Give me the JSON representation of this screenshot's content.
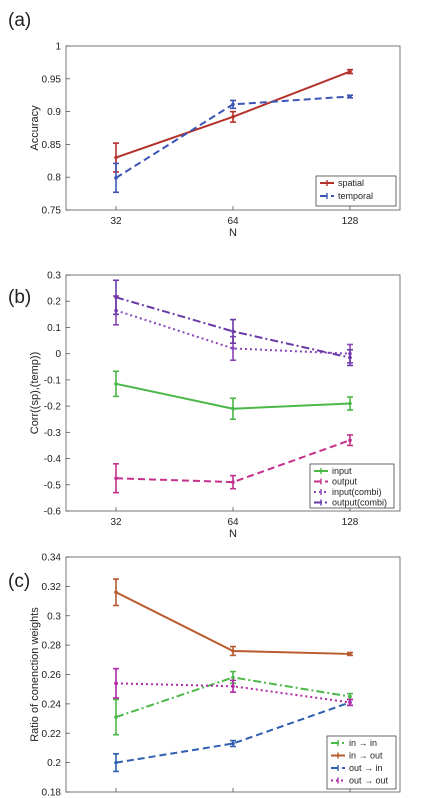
{
  "chart_data": [
    {
      "panel_label": "(a)",
      "type": "line",
      "xscale": "log2",
      "x": [
        32,
        64,
        128
      ],
      "xticklabels": [
        "32",
        "64",
        "128"
      ],
      "xlabel": "N",
      "ylabel": "Accuracy",
      "ylim": [
        0.75,
        1.0
      ],
      "yticks": [
        0.75,
        0.8,
        0.85,
        0.9,
        0.95,
        1.0
      ],
      "yticklabels": [
        "0.75",
        "0.8",
        "0.85",
        "0.9",
        "0.95",
        "1"
      ],
      "legend_position": "bottom-right",
      "series": [
        {
          "name": "spatial",
          "color": "#b5312b",
          "dash": "solid",
          "values": [
            0.83,
            0.892,
            0.961
          ],
          "errors": [
            0.022,
            0.008,
            0.003
          ]
        },
        {
          "name": "temporal",
          "color": "#3c55b5",
          "dash": "dashed",
          "values": [
            0.799,
            0.911,
            0.923
          ],
          "errors": [
            0.022,
            0.006,
            0.002
          ]
        }
      ]
    },
    {
      "panel_label": "(b)",
      "type": "line",
      "xscale": "log2",
      "x": [
        32,
        64,
        128
      ],
      "xticklabels": [
        "32",
        "64",
        "128"
      ],
      "xlabel": "N",
      "ylabel": "Corr((sp),(temp))",
      "ylim": [
        -0.6,
        0.3
      ],
      "yticks": [
        -0.6,
        -0.5,
        -0.4,
        -0.3,
        -0.2,
        -0.1,
        0,
        0.1,
        0.2,
        0.3
      ],
      "yticklabels": [
        "-0.6",
        "-0.5",
        "-0.4",
        "-0.3",
        "-0.2",
        "-0.1",
        "0",
        "0.1",
        "0.2",
        "0.3"
      ],
      "legend_position": "bottom-right",
      "series": [
        {
          "name": "input",
          "color": "#4cb848",
          "dash": "solid",
          "values": [
            -0.115,
            -0.21,
            -0.19
          ],
          "errors": [
            0.048,
            0.04,
            0.025
          ]
        },
        {
          "name": "output",
          "color": "#c4308c",
          "dash": "dashed",
          "values": [
            -0.475,
            -0.49,
            -0.33
          ],
          "errors": [
            0.055,
            0.025,
            0.02
          ]
        },
        {
          "name": "input(combi)",
          "color": "#8a45b8",
          "dash": "dotted",
          "values": [
            0.165,
            0.02,
            0.0
          ],
          "errors": [
            0.055,
            0.045,
            0.035
          ]
        },
        {
          "name": "output(combi)",
          "color": "#6a3aa8",
          "dash": "dashdot",
          "values": [
            0.215,
            0.085,
            -0.015
          ],
          "errors": [
            0.065,
            0.045,
            0.03
          ]
        }
      ]
    },
    {
      "panel_label": "(c)",
      "type": "line",
      "xscale": "log2",
      "x": [
        32,
        64,
        128
      ],
      "xticklabels": [
        "32",
        "64",
        "128"
      ],
      "xlabel": "N",
      "ylabel": "Ratio of conenction weights",
      "ylim": [
        0.18,
        0.34
      ],
      "yticks": [
        0.18,
        0.2,
        0.22,
        0.24,
        0.26,
        0.28,
        0.3,
        0.32,
        0.34
      ],
      "yticklabels": [
        "0.18",
        "0.2",
        "0.22",
        "0.24",
        "0.26",
        "0.28",
        "0.3",
        "0.32",
        "0.34"
      ],
      "legend_position": "bottom-right",
      "series": [
        {
          "name": "in → in",
          "color": "#4cb848",
          "dash": "dashdot",
          "values": [
            0.231,
            0.258,
            0.245
          ],
          "errors": [
            0.012,
            0.004,
            0.002
          ]
        },
        {
          "name": "in → out",
          "color": "#b85a2e",
          "dash": "solid",
          "values": [
            0.316,
            0.276,
            0.274
          ],
          "errors": [
            0.009,
            0.003,
            0.001
          ]
        },
        {
          "name": "out → in",
          "color": "#2f5fb0",
          "dash": "dashed",
          "values": [
            0.2,
            0.213,
            0.241
          ],
          "errors": [
            0.006,
            0.002,
            0.002
          ]
        },
        {
          "name": "out → out",
          "color": "#b02aa6",
          "dash": "dotted",
          "values": [
            0.254,
            0.252,
            0.241
          ],
          "errors": [
            0.01,
            0.004,
            0.002
          ]
        }
      ]
    }
  ]
}
